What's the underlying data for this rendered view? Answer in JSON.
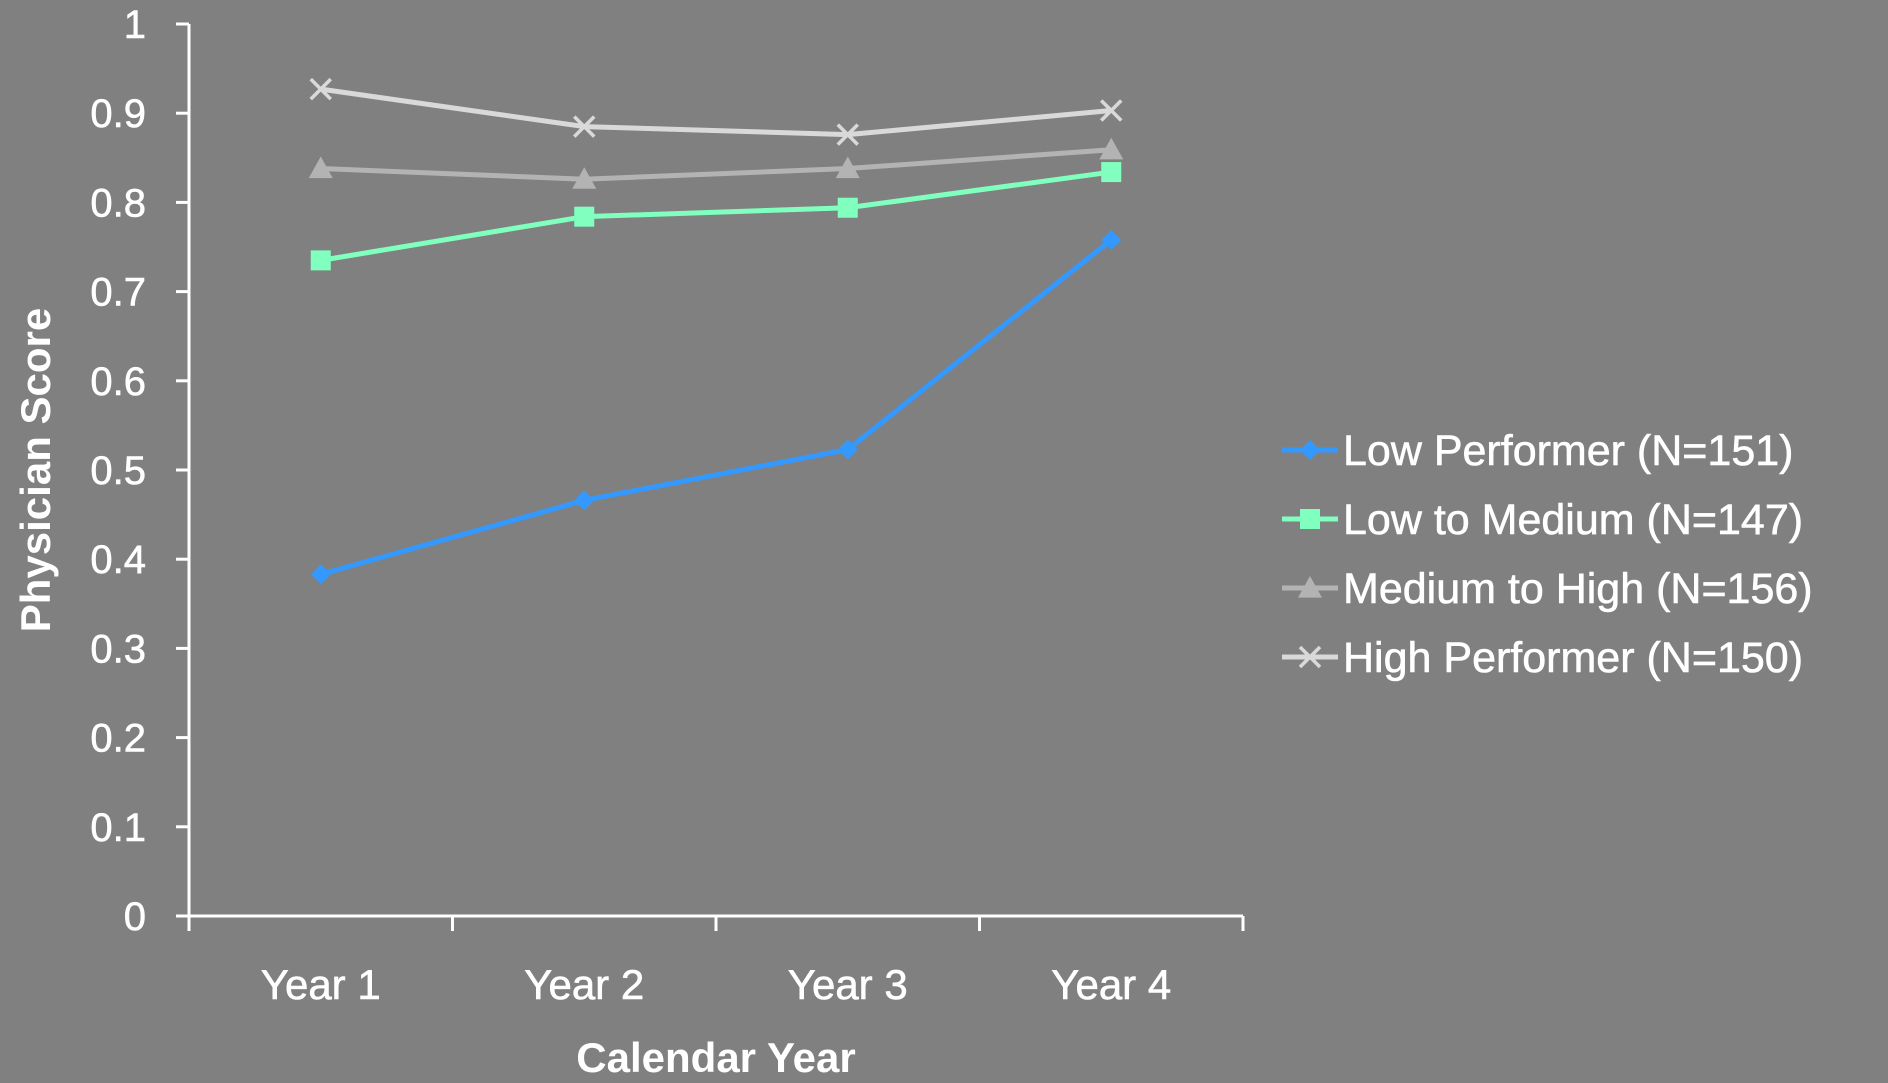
{
  "chart_data": {
    "type": "line",
    "title": "",
    "xlabel": "Calendar Year",
    "ylabel": "Physician Score",
    "categories": [
      "Year 1",
      "Year 2",
      "Year 3",
      "Year 4"
    ],
    "ylim": [
      0,
      1
    ],
    "yticks": [
      "0",
      "0.1",
      "0.2",
      "0.3",
      "0.4",
      "0.5",
      "0.6",
      "0.7",
      "0.8",
      "0.9",
      "1"
    ],
    "grid": false,
    "legend_position": "right",
    "series": [
      {
        "name": "Low Performer (N=151)",
        "values": [
          0.383,
          0.466,
          0.523,
          0.758
        ],
        "color": "#3399ff",
        "marker": "diamond"
      },
      {
        "name": "Low to Medium (N=147)",
        "values": [
          0.735,
          0.784,
          0.794,
          0.834
        ],
        "color": "#80ffbf",
        "marker": "square"
      },
      {
        "name": "Medium to High (N=156)",
        "values": [
          0.838,
          0.826,
          0.838,
          0.859
        ],
        "color": "#b3b3b3",
        "marker": "triangle"
      },
      {
        "name": "High Performer (N=150)",
        "values": [
          0.927,
          0.885,
          0.876,
          0.903
        ],
        "color": "#d9d9d9",
        "marker": "x"
      }
    ]
  }
}
